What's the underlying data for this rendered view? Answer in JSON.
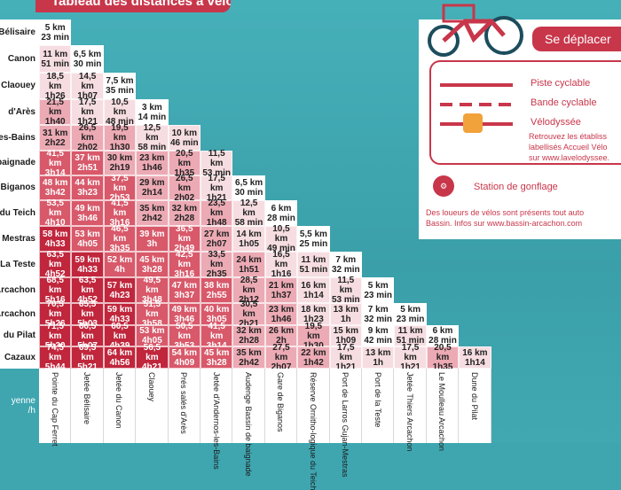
{
  "title": "Tableau des distances à vélo",
  "speed_label": [
    "yenne",
    "/h"
  ],
  "row_labels": [
    "Bélisaire",
    "Canon",
    "Claouey",
    "d'Arès",
    "Jetée\nles-Bains",
    "Audenge\nbaignade",
    "Biganos",
    "Ornitho-\ndu Teich",
    "Les Larros\nMestras",
    "La Teste",
    "Le Thiers\nArcachon",
    "Moulleau\nArcachon",
    "du Pilat",
    "Cazaux"
  ],
  "column_labels": [
    "Pointe du Cap Ferret",
    "Jetée Bélisaire",
    "Jetée du Canon",
    "Claouey",
    "Prés salés d'Arès",
    "Jetée d'Andernos-les-Bains",
    "Audenge Bassin de baignade",
    "Gare de Biganos",
    "Réserve Ornitho-logique du Teich",
    "Port de Larros Gujan-Mestras",
    "Port de la Teste",
    "Jetée Thiers Arcachon",
    "Le Moulleau Arcachon",
    "Dune du Pilat"
  ],
  "rows": [
    [
      [
        "5 km",
        "23 min"
      ]
    ],
    [
      [
        "11 km",
        "51 min"
      ],
      [
        "6,5 km",
        "30 min"
      ]
    ],
    [
      [
        "18,5 km",
        "1h26"
      ],
      [
        "14,5 km",
        "1h07"
      ],
      [
        "7,5 km",
        "35 min"
      ]
    ],
    [
      [
        "21,5 km",
        "1h40"
      ],
      [
        "17,5 km",
        "1h21"
      ],
      [
        "10,5 km",
        "48 min"
      ],
      [
        "3 km",
        "14 min"
      ]
    ],
    [
      [
        "31 km",
        "2h22"
      ],
      [
        "26,5 km",
        "2h02"
      ],
      [
        "19,5 km",
        "1h30"
      ],
      [
        "12,5 km",
        "58 min"
      ],
      [
        "10 km",
        "46 min"
      ]
    ],
    [
      [
        "41,5 km",
        "3h14"
      ],
      [
        "37 km",
        "2h51"
      ],
      [
        "30 km",
        "2h19"
      ],
      [
        "23 km",
        "1h46"
      ],
      [
        "20,5 km",
        "1h35"
      ],
      [
        "11,5 km",
        "53 min"
      ]
    ],
    [
      [
        "48 km",
        "3h42"
      ],
      [
        "44 km",
        "3h23"
      ],
      [
        "37,5 km",
        "2h53"
      ],
      [
        "29 km",
        "2h14"
      ],
      [
        "26,5 km",
        "2h02"
      ],
      [
        "17,5 km",
        "1h21"
      ],
      [
        "6,5 km",
        "30 min"
      ]
    ],
    [
      [
        "53,5 km",
        "4h10"
      ],
      [
        "49 km",
        "3h46"
      ],
      [
        "41,5 km",
        "3h16"
      ],
      [
        "35 km",
        "2h42"
      ],
      [
        "32 km",
        "2h28"
      ],
      [
        "23,5 km",
        "1h48"
      ],
      [
        "12,5 km",
        "58 min"
      ],
      [
        "6 km",
        "28 min"
      ]
    ],
    [
      [
        "58 km",
        "4h33"
      ],
      [
        "53 km",
        "4h05"
      ],
      [
        "46,5 km",
        "3h35"
      ],
      [
        "39 km",
        "3h"
      ],
      [
        "36,5 km",
        "2h49"
      ],
      [
        "27 km",
        "2h07"
      ],
      [
        "14 km",
        "1h05"
      ],
      [
        "10,5 km",
        "49 min"
      ],
      [
        "5,5 km",
        "25 min"
      ]
    ],
    [
      [
        "63,5 km",
        "4h52"
      ],
      [
        "59 km",
        "4h33"
      ],
      [
        "52 km",
        "4h"
      ],
      [
        "45 km",
        "3h28"
      ],
      [
        "42,5 km",
        "3h16"
      ],
      [
        "33,5 km",
        "2h35"
      ],
      [
        "24 km",
        "1h51"
      ],
      [
        "16,5 km",
        "1h16"
      ],
      [
        "11 km",
        "51 min"
      ],
      [
        "7 km",
        "32 min"
      ]
    ],
    [
      [
        "68,5 km",
        "5h16"
      ],
      [
        "63,5 km",
        "4h52"
      ],
      [
        "57 km",
        "4h23"
      ],
      [
        "49,5 km",
        "3h48"
      ],
      [
        "47 km",
        "3h37"
      ],
      [
        "38 km",
        "2h55"
      ],
      [
        "28,5 km",
        "2h12"
      ],
      [
        "21 km",
        "1h37"
      ],
      [
        "16 km",
        "1h14"
      ],
      [
        "11,5 km",
        "53 min"
      ],
      [
        "5 km",
        "23 min"
      ]
    ],
    [
      [
        "70,5 km",
        "5h26"
      ],
      [
        "65,5 km",
        "5h03"
      ],
      [
        "59 km",
        "4h33"
      ],
      [
        "51,5 km",
        "3h58"
      ],
      [
        "49 km",
        "3h46"
      ],
      [
        "40 km",
        "3h05"
      ],
      [
        "30,5 km",
        "2h21"
      ],
      [
        "23 km",
        "1h46"
      ],
      [
        "18 km",
        "1h23"
      ],
      [
        "13 km",
        "1h"
      ],
      [
        "7 km",
        "32 min"
      ],
      [
        "5 km",
        "23 min"
      ]
    ],
    [
      [
        "71,5 km",
        "5h30"
      ],
      [
        "66,5 km",
        "5h07"
      ],
      [
        "60,5 km",
        "4h39"
      ],
      [
        "53 km",
        "4h05"
      ],
      [
        "50,5 km",
        "3h53"
      ],
      [
        "41,5 km",
        "3h14"
      ],
      [
        "32 km",
        "2h28"
      ],
      [
        "26 km",
        "2h"
      ],
      [
        "19,5 km",
        "1h30"
      ],
      [
        "15 km",
        "1h09"
      ],
      [
        "9 km",
        "42 min"
      ],
      [
        "11 km",
        "51 min"
      ],
      [
        "6 km",
        "28 min"
      ]
    ],
    [
      [
        "74,5 km",
        "5h44"
      ],
      [
        "69,5 km",
        "5h21"
      ],
      [
        "64 km",
        "4h56"
      ],
      [
        "56,5 km",
        "4h21"
      ],
      [
        "54 km",
        "4h09"
      ],
      [
        "45 km",
        "3h28"
      ],
      [
        "35 km",
        "2h42"
      ],
      [
        "27,5 km",
        "2h07"
      ],
      [
        "22 km",
        "1h42"
      ],
      [
        "17,5 km",
        "1h21"
      ],
      [
        "13 km",
        "1h"
      ],
      [
        "17,5 km",
        "1h21"
      ],
      [
        "20,5 km",
        "1h35"
      ],
      [
        "16 km",
        "1h14"
      ]
    ]
  ],
  "right_panel": {
    "heading": "Se déplacer",
    "legend": [
      "Piste cyclable",
      "Bande cyclable",
      "Vélodyssée"
    ],
    "velo_lines": [
      "Retrouvez les établiss",
      "labellisés Accueil Vélo",
      "sur www.lavelodyssee."
    ],
    "pump": "Station de gonflage",
    "loueurs_lines": [
      "Des loueurs de vélos sont présents tout auto",
      "Bassin. Infos sur www.bassin-arcachon.com"
    ]
  },
  "colors": {
    "red_dark": "#c0263c",
    "red_mid": "#d8596a",
    "pink": "#ecaab4",
    "pale": "#f6dde1",
    "white": "#ffffff",
    "teal": "#3fa6b0"
  }
}
